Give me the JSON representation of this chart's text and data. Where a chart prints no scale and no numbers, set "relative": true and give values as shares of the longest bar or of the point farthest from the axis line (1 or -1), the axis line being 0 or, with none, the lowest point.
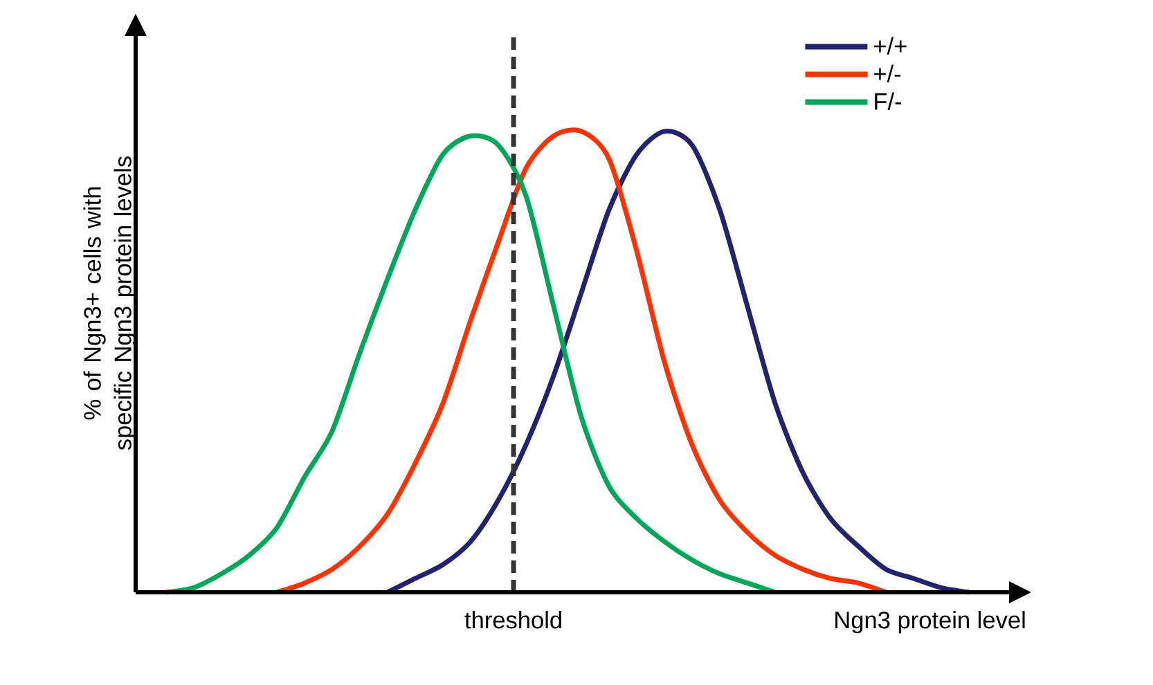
{
  "chart_data": {
    "type": "line",
    "relative": true,
    "xlabel": "Ngn3 protein level",
    "ylabel": "% of Ngn3+  cells with specific Ngn3 protein levels",
    "categories": [
      null,
      null,
      null,
      null,
      null,
      null,
      null,
      null,
      null,
      null,
      null,
      null,
      null,
      null,
      null,
      null,
      null,
      null,
      null,
      null,
      null,
      null,
      null,
      null,
      null,
      null,
      null,
      null,
      null,
      null
    ],
    "series": [
      {
        "name": "+/+",
        "color": "#22226e",
        "values": [
          null,
          null,
          null,
          null,
          null,
          null,
          null,
          null,
          0,
          0.03,
          0.06,
          0.11,
          0.2,
          0.32,
          0.47,
          0.65,
          0.83,
          0.95,
          1,
          0.97,
          0.83,
          0.62,
          0.41,
          0.26,
          0.16,
          0.1,
          0.05,
          0.03,
          0.01,
          0
        ]
      },
      {
        "name": "+/-",
        "color": "#ff3300",
        "values": [
          null,
          null,
          null,
          null,
          0,
          0.02,
          0.05,
          0.1,
          0.17,
          0.28,
          0.41,
          0.59,
          0.76,
          0.92,
          0.99,
          1,
          0.94,
          0.74,
          0.5,
          0.32,
          0.2,
          0.13,
          0.08,
          0.05,
          0.03,
          0.02,
          0,
          null,
          null,
          null
        ]
      },
      {
        "name": "F/-",
        "color": "#00a65a",
        "values": [
          0,
          0.01,
          0.04,
          0.08,
          0.14,
          0.25,
          0.35,
          0.52,
          0.68,
          0.83,
          0.95,
          0.99,
          0.97,
          0.86,
          0.62,
          0.38,
          0.23,
          0.16,
          0.11,
          0.07,
          0.04,
          0.02,
          0,
          null,
          null,
          null,
          null,
          null,
          null,
          null
        ]
      }
    ],
    "annotations": [
      "threshold"
    ],
    "legend": "top right",
    "marker": "none",
    "line_style": "solid"
  }
}
